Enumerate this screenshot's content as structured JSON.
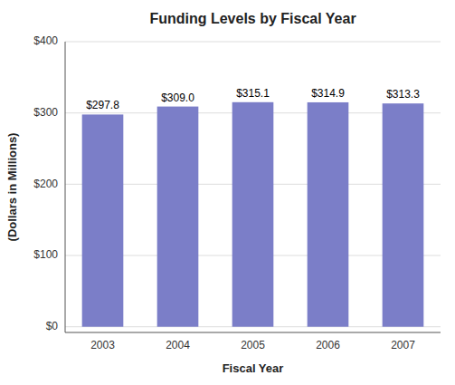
{
  "chart_data": {
    "type": "bar",
    "title": "Funding Levels by Fiscal Year",
    "xlabel": "Fiscal Year",
    "ylabel": "(Dollars in Millions)",
    "categories": [
      "2003",
      "2004",
      "2005",
      "2006",
      "2007"
    ],
    "values": [
      297.8,
      309.0,
      315.1,
      314.9,
      313.3
    ],
    "value_labels": [
      "$297.8",
      "$309.0",
      "$315.1",
      "$314.9",
      "$313.3"
    ],
    "data_labels": true,
    "color": "#7B7EC8",
    "ylim": [
      -8,
      400
    ],
    "yticks": [
      {
        "value": 0,
        "label": "$0"
      },
      {
        "value": 100,
        "label": "$100"
      },
      {
        "value": 200,
        "label": "$200"
      },
      {
        "value": 300,
        "label": "$300"
      },
      {
        "value": 400,
        "label": "$400"
      }
    ],
    "grid": true
  }
}
